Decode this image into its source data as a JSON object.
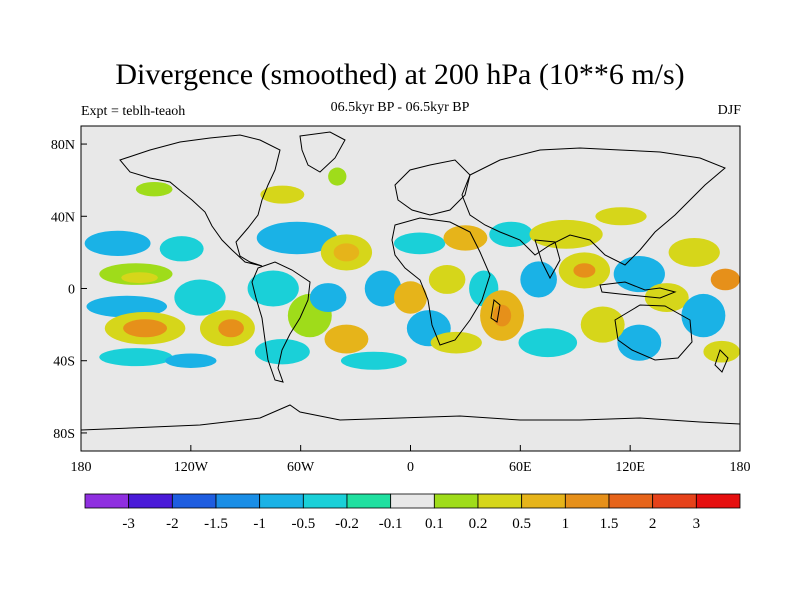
{
  "title": "Divergence (smoothed) at 200 hPa (10**6 m/s)",
  "subtitle": "06.5kyr BP - 06.5kyr BP",
  "left_label": "Expt = teblh-teaoh",
  "right_label": "DJF",
  "map": {
    "projection": "cylindrical-equidistant",
    "lon_range": [
      -180,
      180
    ],
    "lat_range": [
      -90,
      90
    ],
    "background_color": "#e8e8e8",
    "x_ticks": [
      {
        "value": -180,
        "label": "180"
      },
      {
        "value": -120,
        "label": "120W"
      },
      {
        "value": -60,
        "label": "60W"
      },
      {
        "value": 0,
        "label": "0"
      },
      {
        "value": 60,
        "label": "60E"
      },
      {
        "value": 120,
        "label": "120E"
      },
      {
        "value": 180,
        "label": "180"
      }
    ],
    "y_ticks": [
      {
        "value": 80,
        "label": "80N"
      },
      {
        "value": 40,
        "label": "40N"
      },
      {
        "value": 0,
        "label": "0"
      },
      {
        "value": -40,
        "label": "40S"
      },
      {
        "value": -80,
        "label": "80S"
      }
    ]
  },
  "colorbar": {
    "colors": [
      "#8f2fe0",
      "#4a1ad8",
      "#1e5de0",
      "#1a8ee6",
      "#1ab2e6",
      "#1ad0d8",
      "#20e0a0",
      "#e8e8e8",
      "#9fdc1a",
      "#d6d61a",
      "#e6b41a",
      "#e6901a",
      "#e6641a",
      "#e6421a",
      "#e60f0f"
    ],
    "labels": [
      "-3",
      "-2",
      "-1.5",
      "-1",
      "-0.5",
      "-0.2",
      "-0.1",
      "0.1",
      "0.2",
      "0.5",
      "1",
      "1.5",
      "2",
      "3"
    ]
  },
  "field_blobs": [
    {
      "lon": -160,
      "lat": 25,
      "rx": 18,
      "ry": 7,
      "color": "#1ab2e6"
    },
    {
      "lon": -150,
      "lat": 8,
      "rx": 20,
      "ry": 6,
      "color": "#9fdc1a"
    },
    {
      "lon": -148,
      "lat": 6,
      "rx": 10,
      "ry": 3,
      "color": "#d6d61a"
    },
    {
      "lon": -155,
      "lat": -10,
      "rx": 22,
      "ry": 6,
      "color": "#1ab2e6"
    },
    {
      "lon": -145,
      "lat": -22,
      "rx": 22,
      "ry": 9,
      "color": "#d6d61a"
    },
    {
      "lon": -145,
      "lat": -22,
      "rx": 12,
      "ry": 5,
      "color": "#e6901a"
    },
    {
      "lon": -150,
      "lat": -38,
      "rx": 20,
      "ry": 5,
      "color": "#1ad0d8"
    },
    {
      "lon": -125,
      "lat": 22,
      "rx": 12,
      "ry": 7,
      "color": "#1ad0d8"
    },
    {
      "lon": -115,
      "lat": -5,
      "rx": 14,
      "ry": 10,
      "color": "#1ad0d8"
    },
    {
      "lon": -100,
      "lat": -22,
      "rx": 15,
      "ry": 10,
      "color": "#d6d61a"
    },
    {
      "lon": -98,
      "lat": -22,
      "rx": 7,
      "ry": 5,
      "color": "#e6901a"
    },
    {
      "lon": -120,
      "lat": -40,
      "rx": 14,
      "ry": 4,
      "color": "#1ab2e6"
    },
    {
      "lon": -140,
      "lat": 55,
      "rx": 10,
      "ry": 4,
      "color": "#9fdc1a"
    },
    {
      "lon": -70,
      "lat": 52,
      "rx": 12,
      "ry": 5,
      "color": "#d6d61a"
    },
    {
      "lon": -40,
      "lat": 62,
      "rx": 5,
      "ry": 5,
      "color": "#9fdc1a"
    },
    {
      "lon": -62,
      "lat": 28,
      "rx": 22,
      "ry": 9,
      "color": "#1ab2e6"
    },
    {
      "lon": -35,
      "lat": 20,
      "rx": 14,
      "ry": 10,
      "color": "#d6d61a"
    },
    {
      "lon": -35,
      "lat": 20,
      "rx": 7,
      "ry": 5,
      "color": "#e6b41a"
    },
    {
      "lon": -75,
      "lat": 0,
      "rx": 14,
      "ry": 10,
      "color": "#1ad0d8"
    },
    {
      "lon": -55,
      "lat": -15,
      "rx": 12,
      "ry": 12,
      "color": "#9fdc1a"
    },
    {
      "lon": -45,
      "lat": -5,
      "rx": 10,
      "ry": 8,
      "color": "#1ab2e6"
    },
    {
      "lon": -70,
      "lat": -35,
      "rx": 15,
      "ry": 7,
      "color": "#1ad0d8"
    },
    {
      "lon": -35,
      "lat": -28,
      "rx": 12,
      "ry": 8,
      "color": "#e6b41a"
    },
    {
      "lon": -20,
      "lat": -40,
      "rx": 18,
      "ry": 5,
      "color": "#1ad0d8"
    },
    {
      "lon": -15,
      "lat": 0,
      "rx": 10,
      "ry": 10,
      "color": "#1ab2e6"
    },
    {
      "lon": 0,
      "lat": -5,
      "rx": 9,
      "ry": 9,
      "color": "#e6b41a"
    },
    {
      "lon": 5,
      "lat": 25,
      "rx": 14,
      "ry": 6,
      "color": "#1ad0d8"
    },
    {
      "lon": 10,
      "lat": -22,
      "rx": 12,
      "ry": 10,
      "color": "#1ab2e6"
    },
    {
      "lon": 20,
      "lat": 5,
      "rx": 10,
      "ry": 8,
      "color": "#d6d61a"
    },
    {
      "lon": 30,
      "lat": 28,
      "rx": 12,
      "ry": 7,
      "color": "#e6b41a"
    },
    {
      "lon": 40,
      "lat": 0,
      "rx": 8,
      "ry": 10,
      "color": "#1ad0d8"
    },
    {
      "lon": 25,
      "lat": -30,
      "rx": 14,
      "ry": 6,
      "color": "#d6d61a"
    },
    {
      "lon": 50,
      "lat": -15,
      "rx": 12,
      "ry": 14,
      "color": "#e6b41a"
    },
    {
      "lon": 50,
      "lat": -15,
      "rx": 5,
      "ry": 6,
      "color": "#e6901a"
    },
    {
      "lon": 55,
      "lat": 30,
      "rx": 12,
      "ry": 7,
      "color": "#1ad0d8"
    },
    {
      "lon": 70,
      "lat": 5,
      "rx": 10,
      "ry": 10,
      "color": "#1ab2e6"
    },
    {
      "lon": 75,
      "lat": -30,
      "rx": 16,
      "ry": 8,
      "color": "#1ad0d8"
    },
    {
      "lon": 95,
      "lat": 10,
      "rx": 14,
      "ry": 10,
      "color": "#d6d61a"
    },
    {
      "lon": 95,
      "lat": 10,
      "rx": 6,
      "ry": 4,
      "color": "#e6901a"
    },
    {
      "lon": 85,
      "lat": 30,
      "rx": 20,
      "ry": 8,
      "color": "#d6d61a"
    },
    {
      "lon": 115,
      "lat": 40,
      "rx": 14,
      "ry": 5,
      "color": "#d6d61a"
    },
    {
      "lon": 125,
      "lat": 8,
      "rx": 14,
      "ry": 10,
      "color": "#1ab2e6"
    },
    {
      "lon": 125,
      "lat": -30,
      "rx": 12,
      "ry": 10,
      "color": "#1ab2e6"
    },
    {
      "lon": 105,
      "lat": -20,
      "rx": 12,
      "ry": 10,
      "color": "#d6d61a"
    },
    {
      "lon": 140,
      "lat": -5,
      "rx": 12,
      "ry": 8,
      "color": "#d6d61a"
    },
    {
      "lon": 155,
      "lat": 20,
      "rx": 14,
      "ry": 8,
      "color": "#d6d61a"
    },
    {
      "lon": 160,
      "lat": -15,
      "rx": 12,
      "ry": 12,
      "color": "#1ab2e6"
    },
    {
      "lon": 170,
      "lat": -35,
      "rx": 10,
      "ry": 6,
      "color": "#d6d61a"
    },
    {
      "lon": 172,
      "lat": 5,
      "rx": 8,
      "ry": 6,
      "color": "#e6901a"
    }
  ]
}
